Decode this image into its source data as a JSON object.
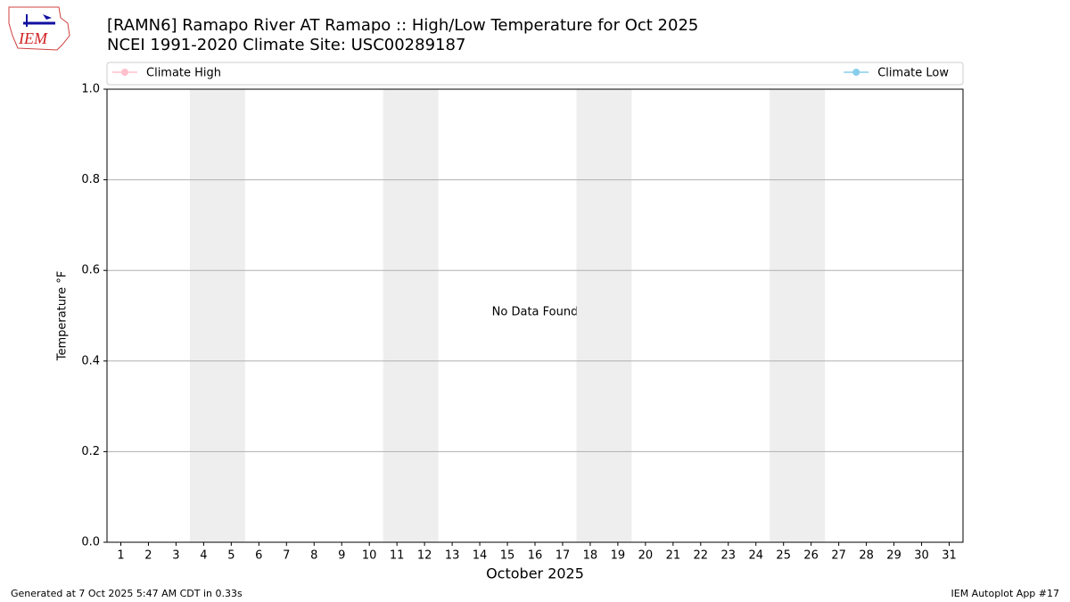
{
  "logo": "IEM",
  "chart_data": {
    "type": "line",
    "title": "[RAMN6] Ramapo River  AT Ramapo :: High/Low Temperature for Oct 2025",
    "subtitle": "NCEI 1991-2020 Climate Site: USC00289187",
    "x_label": "October 2025",
    "y_label": "Temperature °F",
    "annotation": "No Data Found",
    "x": [
      1,
      2,
      3,
      4,
      5,
      6,
      7,
      8,
      9,
      10,
      11,
      12,
      13,
      14,
      15,
      16,
      17,
      18,
      19,
      20,
      21,
      22,
      23,
      24,
      25,
      26,
      27,
      28,
      29,
      30,
      31
    ],
    "series": [
      {
        "name": "Climate High",
        "color": "pink",
        "values": [
          null,
          null,
          null,
          null,
          null,
          null,
          null,
          null,
          null,
          null,
          null,
          null,
          null,
          null,
          null,
          null,
          null,
          null,
          null,
          null,
          null,
          null,
          null,
          null,
          null,
          null,
          null,
          null,
          null,
          null,
          null
        ]
      },
      {
        "name": "Climate Low",
        "color": "skyblue",
        "values": [
          null,
          null,
          null,
          null,
          null,
          null,
          null,
          null,
          null,
          null,
          null,
          null,
          null,
          null,
          null,
          null,
          null,
          null,
          null,
          null,
          null,
          null,
          null,
          null,
          null,
          null,
          null,
          null,
          null,
          null,
          null
        ]
      }
    ],
    "shaded_spans": [
      [
        3.5,
        5.5
      ],
      [
        10.5,
        12.5
      ],
      [
        17.5,
        19.5
      ],
      [
        24.5,
        26.5
      ]
    ],
    "shade_color": "#eeeeee",
    "xlim": [
      0.5,
      31.5
    ],
    "xticks": [
      1,
      2,
      3,
      4,
      5,
      6,
      7,
      8,
      9,
      10,
      11,
      12,
      13,
      14,
      15,
      16,
      17,
      18,
      19,
      20,
      21,
      22,
      23,
      24,
      25,
      26,
      27,
      28,
      29,
      30,
      31
    ],
    "ylim": [
      0,
      1
    ],
    "yticks": [
      {
        "value": 0,
        "label": "0.0"
      },
      0.2,
      0.4,
      0.6,
      0.8,
      {
        "value": 1,
        "label": "1.0"
      }
    ],
    "grid": true,
    "legend": "top",
    "footer_left": "Generated at 7 Oct 2025 5:47 AM CDT in 0.33s",
    "footer_right": "IEM Autoplot App #17"
  }
}
